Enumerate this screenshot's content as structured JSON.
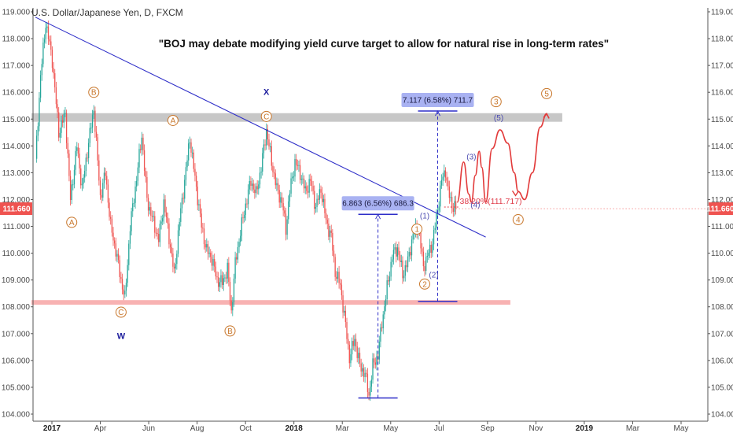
{
  "header": {
    "symbol_title": "U.S. Dollar/Japanese Yen, D, FXCM",
    "headline": "\"BOJ may debate modifying yield curve target to allow for natural rise in long-term rates\""
  },
  "colors": {
    "up": "#26a69a",
    "down": "#ef5350",
    "trendline": "#2e2ec8",
    "support": "#f7a5a5",
    "resistance": "#bdbdbd",
    "wave_label": "#c8762a",
    "wave_sub": "#4b4bb0",
    "fib": "#e03c4a",
    "projection": "#e23a3a",
    "measure_fill": "#a9b2f2",
    "price_tag": "#ef5350"
  },
  "chart_data": {
    "type": "candlestick",
    "title": "U.S. Dollar/Japanese Yen, D, FXCM",
    "ylim": [
      104.0,
      119.0
    ],
    "y_ticks": [
      "104.000",
      "105.000",
      "106.000",
      "107.000",
      "108.000",
      "109.000",
      "110.000",
      "111.000",
      "112.000",
      "113.000",
      "114.000",
      "115.000",
      "116.000",
      "117.000",
      "118.000",
      "119.000"
    ],
    "x_ticks": [
      "2017",
      "Apr",
      "Jun",
      "Aug",
      "Oct",
      "2018",
      "Mar",
      "May",
      "Jul",
      "Sep",
      "Nov",
      "2019",
      "Mar",
      "May"
    ],
    "x_tick_bold": [
      "2017",
      "2018",
      "2019"
    ],
    "last_price": "111.660",
    "price_path": [
      [
        0,
        113.4
      ],
      [
        4,
        116.6
      ],
      [
        8,
        118.6
      ],
      [
        13,
        117.2
      ],
      [
        18,
        114.5
      ],
      [
        23,
        115.2
      ],
      [
        27,
        112.0
      ],
      [
        32,
        114.0
      ],
      [
        36,
        112.4
      ],
      [
        40,
        113.8
      ],
      [
        45,
        115.4
      ],
      [
        50,
        112.1
      ],
      [
        54,
        113.0
      ],
      [
        58,
        111.0
      ],
      [
        62,
        110.1
      ],
      [
        66,
        109.0
      ],
      [
        69,
        108.3
      ],
      [
        73,
        111.0
      ],
      [
        78,
        112.8
      ],
      [
        82,
        114.4
      ],
      [
        86,
        112.0
      ],
      [
        90,
        111.3
      ],
      [
        95,
        110.5
      ],
      [
        99,
        111.9
      ],
      [
        103,
        110.6
      ],
      [
        107,
        109.2
      ],
      [
        111,
        111.2
      ],
      [
        115,
        112.7
      ],
      [
        119,
        114.3
      ],
      [
        123,
        112.8
      ],
      [
        128,
        111.0
      ],
      [
        132,
        110.1
      ],
      [
        136,
        109.8
      ],
      [
        140,
        109.0
      ],
      [
        144,
        108.9
      ],
      [
        148,
        109.4
      ],
      [
        151,
        107.8
      ],
      [
        154,
        109.6
      ],
      [
        158,
        110.8
      ],
      [
        162,
        111.8
      ],
      [
        166,
        112.7
      ],
      [
        170,
        112.2
      ],
      [
        174,
        113.2
      ],
      [
        178,
        114.6
      ],
      [
        182,
        113.4
      ],
      [
        186,
        112.4
      ],
      [
        190,
        111.9
      ],
      [
        193,
        110.9
      ],
      [
        196,
        112.3
      ],
      [
        200,
        113.4
      ],
      [
        204,
        113.0
      ],
      [
        208,
        112.3
      ],
      [
        212,
        112.7
      ],
      [
        216,
        111.7
      ],
      [
        220,
        112.4
      ],
      [
        224,
        111.2
      ],
      [
        228,
        110.6
      ],
      [
        231,
        109.3
      ],
      [
        235,
        108.8
      ],
      [
        239,
        107.3
      ],
      [
        242,
        106.1
      ],
      [
        246,
        106.8
      ],
      [
        250,
        105.8
      ],
      [
        254,
        105.5
      ],
      [
        257,
        104.7
      ],
      [
        260,
        105.8
      ],
      [
        264,
        106.2
      ],
      [
        267,
        107.4
      ],
      [
        271,
        108.7
      ],
      [
        275,
        109.9
      ],
      [
        279,
        110.2
      ],
      [
        283,
        109.2
      ],
      [
        287,
        109.7
      ],
      [
        291,
        110.7
      ],
      [
        295,
        111.0
      ],
      [
        299,
        109.5
      ],
      [
        303,
        110.0
      ],
      [
        306,
        110.4
      ],
      [
        309,
        111.3
      ],
      [
        313,
        112.7
      ],
      [
        316,
        113.1
      ],
      [
        318,
        112.3
      ],
      [
        321,
        111.8
      ],
      [
        324,
        111.66
      ]
    ],
    "series": [
      {
        "name": "Descending trendline",
        "points": [
          [
            0,
            118.8
          ],
          [
            347,
            110.6
          ]
        ]
      },
      {
        "name": "Projected path",
        "points": [
          [
            325,
            111.9
          ],
          [
            330,
            113.4
          ],
          [
            334,
            112.2
          ],
          [
            336,
            111.9
          ],
          [
            339,
            112.9
          ],
          [
            342,
            113.8
          ],
          [
            344,
            113.2
          ],
          [
            347,
            111.9
          ],
          [
            352,
            113.9
          ],
          [
            358,
            114.6
          ],
          [
            364,
            114.1
          ],
          [
            369,
            113.0
          ],
          [
            372,
            112.3
          ],
          [
            377,
            112.0
          ],
          [
            383,
            113.0
          ],
          [
            389,
            114.7
          ],
          [
            394,
            115.2
          ]
        ]
      }
    ],
    "zones": [
      {
        "name": "support",
        "x": [
          -3,
          366
        ],
        "y": [
          108.08,
          108.25
        ]
      },
      {
        "name": "resistance",
        "x": [
          -3,
          406
        ],
        "y": [
          114.9,
          115.22
        ]
      }
    ],
    "annotations": {
      "waves_major": [
        {
          "text": "A",
          "x": 28,
          "y": 111.15
        },
        {
          "text": "B",
          "x": 45,
          "y": 116.0
        },
        {
          "text": "C",
          "x": 66,
          "y": 107.8
        },
        {
          "text": "A",
          "x": 106,
          "y": 114.95
        },
        {
          "text": "B",
          "x": 150,
          "y": 107.1
        },
        {
          "text": "C",
          "x": 178,
          "y": 115.1
        },
        {
          "text": "1",
          "x": 294,
          "y": 110.9
        },
        {
          "text": "2",
          "x": 300,
          "y": 108.85
        },
        {
          "text": "3",
          "x": 355,
          "y": 115.65
        },
        {
          "text": "4",
          "x": 372,
          "y": 111.25
        },
        {
          "text": "5",
          "x": 394,
          "y": 115.95
        }
      ],
      "waves_minor": [
        {
          "text": "(1)",
          "x": 300,
          "y": 111.3
        },
        {
          "text": "(2)",
          "x": 307,
          "y": 109.1
        },
        {
          "text": "(3)",
          "x": 336,
          "y": 113.5
        },
        {
          "text": "(4)",
          "x": 339,
          "y": 111.7
        },
        {
          "text": "(5)",
          "x": 357,
          "y": 114.95
        }
      ],
      "wx": [
        {
          "text": "W",
          "x": 66,
          "y": 106.8
        },
        {
          "text": "X",
          "x": 178,
          "y": 115.9
        }
      ],
      "fib_label": "38.20%(111.717)",
      "fib_level": 111.72,
      "measures": [
        {
          "text": "6.863 (6.56%) 686.3",
          "x": 264,
          "y_from": 104.6,
          "y_to": 111.45
        },
        {
          "text": "7.117 (6.58%) 711.7",
          "x": 310,
          "y_from": 108.2,
          "y_to": 115.3
        }
      ]
    }
  }
}
